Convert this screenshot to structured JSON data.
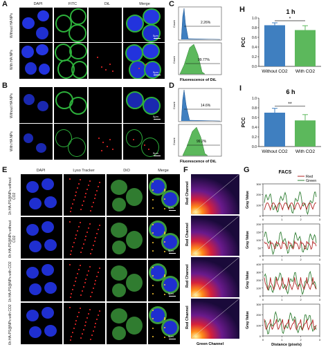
{
  "panels": {
    "A": "A",
    "B": "B",
    "C": "C",
    "D": "D",
    "E": "E",
    "F": "F",
    "G": "G",
    "H": "H",
    "I": "I"
  },
  "microscopy_ab": {
    "columns": [
      "DAPI",
      "FITC",
      "DiL",
      "Merge"
    ],
    "rows_a": [
      "Without HA NPs",
      "With HA NPs"
    ],
    "rows_b": [
      "Without HA NPs",
      "With HA NPs"
    ],
    "scale": "5μm"
  },
  "microscopy_e": {
    "columns": [
      "DAPI",
      "Lyso Tracker",
      "DiO",
      "Merge"
    ],
    "rows": [
      "1h HA-PS@NPs without CO2",
      "6h HA-PS@NPs without CO2",
      "1h HA-PS@NPs with CO2",
      "6h HA-PS@NPs with CO2"
    ],
    "scale": "5μm"
  },
  "flow_c": {
    "xlabel": "Fluorescence of DiL",
    "ylabel": "Count",
    "top_pct": "2.26%",
    "bottom_pct": "99.77%"
  },
  "flow_d": {
    "xlabel": "Fluorescence of DiL",
    "ylabel": "Count",
    "top_pct": "14.6%",
    "bottom_pct": "99.2%"
  },
  "scatter_f": {
    "ylabel": "Red Channel",
    "xlabel": "Green Channel"
  },
  "profiles_g": {
    "title": "FACS",
    "legend": [
      "Red",
      "Green"
    ],
    "ylabel": "Gray Value",
    "xlabel": "Distance (pixels)",
    "xticks": [
      "0",
      "1",
      "2",
      "3"
    ],
    "yticks_panel1": [
      "0",
      "100",
      "200",
      "300"
    ],
    "yticks_panel2": [
      "0",
      "50",
      "100",
      "150",
      "200"
    ],
    "yticks_panel3": [
      "0",
      "100",
      "200",
      "300",
      "400"
    ],
    "yticks_panel4": [
      "0",
      "100",
      "200",
      "300"
    ]
  },
  "colors": {
    "blue_bar": "#3f7fc0",
    "green_bar": "#5cb85c",
    "red_line": "#b22222",
    "green_line": "#2e7d32"
  },
  "chart_data": [
    {
      "type": "bar",
      "title": "1 h",
      "ylabel": "PCC",
      "categories": [
        "Without CO2",
        "With CO2"
      ],
      "values": [
        0.85,
        0.75
      ],
      "errors": [
        0.05,
        0.09
      ],
      "ylim": [
        0.0,
        1.0
      ],
      "yticks": [
        "0.0",
        "0.2",
        "0.4",
        "0.6",
        "0.8",
        "1.0"
      ],
      "significance": "*"
    },
    {
      "type": "bar",
      "title": "6 h",
      "ylabel": "PCC",
      "categories": [
        "Without CO2",
        "With CO2"
      ],
      "values": [
        0.7,
        0.54
      ],
      "errors": [
        0.09,
        0.12
      ],
      "ylim": [
        0.0,
        1.0
      ],
      "yticks": [
        "0.0",
        "0.2",
        "0.4",
        "0.6",
        "0.8",
        "1.0"
      ],
      "significance": "**"
    }
  ]
}
